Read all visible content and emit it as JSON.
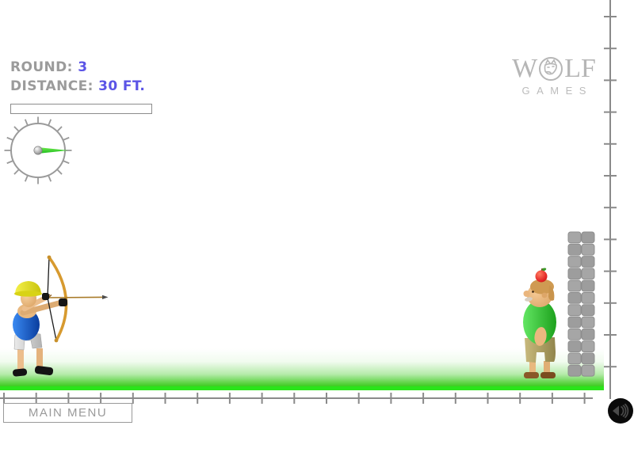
{
  "hud": {
    "round_label": "ROUND:",
    "round_value": "3",
    "distance_label": "DISTANCE:",
    "distance_value": "30 FT.",
    "power_value_pct": 0
  },
  "logo": {
    "prefix": "W",
    "suffix": "LF",
    "subtitle": "GAMES"
  },
  "menu": {
    "main_menu_label": "MAIN MENU"
  },
  "colors": {
    "hud_label": "#9b9b9b",
    "hud_value_accent": "#5b54e6",
    "logo_gray": "#b6b6b6",
    "ruler_gray": "#8a8a8a",
    "grass_green": "#3ecb20",
    "grass_edge_green": "#2be41a",
    "needle_green": "#2fd22f",
    "archer_shirt_blue": "#1b63d6",
    "archer_hat_yellow": "#e8e02a",
    "target_shirt_green": "#35c535",
    "apple_red": "#d01010",
    "brick_gray": "#a2a2a2"
  }
}
